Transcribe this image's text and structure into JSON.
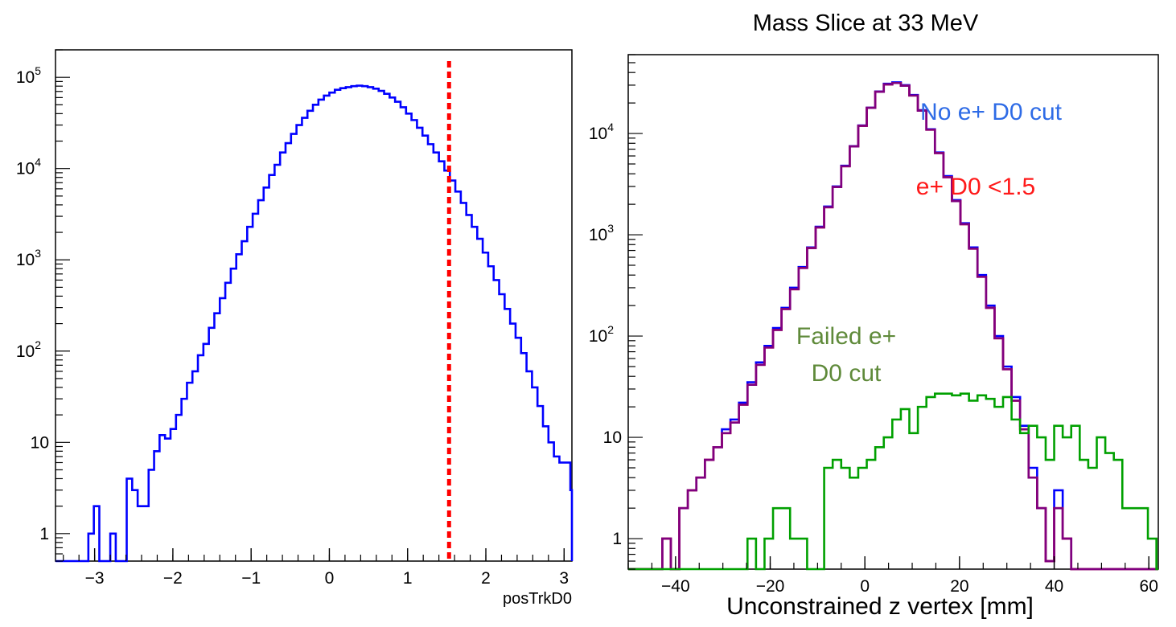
{
  "page": {
    "right_title": "Mass Slice at 33 MeV"
  },
  "colors": {
    "blue": "#0000ff",
    "red_cut": "#ff0000",
    "red_series": "#ff0000",
    "purple": "#7f007f",
    "green": "#00a000",
    "legend_blue": "#2e6be6",
    "legend_red": "#ff1a1a",
    "legend_green": "#5f8a3a"
  },
  "chart_data": [
    {
      "id": "left",
      "type": "histogram",
      "xlabel": "posTrkD0",
      "title": "",
      "x_scale": "linear",
      "y_scale": "log",
      "xlim": [
        -3.5,
        3.1
      ],
      "ylim": [
        0.5,
        200000
      ],
      "xticks": [
        -3,
        -2,
        -1,
        0,
        1,
        2,
        3
      ],
      "xtick_labels": [
        "−3",
        "−2",
        "−1",
        "0",
        "1",
        "2",
        "3"
      ],
      "yticks": [
        {
          "value": 1,
          "base": "1",
          "exp": ""
        },
        {
          "value": 10,
          "base": "10",
          "exp": ""
        },
        {
          "value": 100,
          "base": "10",
          "exp": "2"
        },
        {
          "value": 1000,
          "base": "10",
          "exp": "3"
        },
        {
          "value": 10000,
          "base": "10",
          "exp": "4"
        },
        {
          "value": 100000,
          "base": "10",
          "exp": "5"
        }
      ],
      "grid": false,
      "bin_start": -3.5,
      "bin_width": 0.07,
      "cut_line_x": 1.53,
      "series": [
        {
          "color_key": "blue",
          "values": [
            0,
            0,
            0,
            0,
            0,
            0,
            1,
            2,
            0,
            0,
            1,
            0,
            0,
            4,
            3,
            2,
            2,
            5,
            8,
            12,
            11,
            14,
            20,
            30,
            45,
            60,
            90,
            120,
            180,
            260,
            380,
            560,
            800,
            1150,
            1600,
            2300,
            3200,
            4500,
            6200,
            8500,
            11000,
            15000,
            19000,
            24000,
            30000,
            36000,
            43000,
            50000,
            57000,
            63000,
            68000,
            73000,
            76000,
            78000,
            80000,
            81000,
            80000,
            78000,
            75000,
            71000,
            66000,
            60000,
            54000,
            47000,
            40000,
            34000,
            28000,
            23000,
            18500,
            15000,
            12000,
            9500,
            7400,
            5600,
            4200,
            3100,
            2300,
            1700,
            1200,
            850,
            600,
            420,
            290,
            200,
            140,
            95,
            60,
            40,
            25,
            15,
            10,
            7,
            6,
            6,
            3,
            1,
            0.6,
            2,
            2,
            1,
            0,
            0.6,
            1,
            0,
            1,
            0
          ]
        }
      ]
    },
    {
      "id": "right",
      "type": "histogram",
      "title": "Mass Slice at 33 MeV",
      "xlabel": "Unconstrained z vertex [mm]",
      "x_scale": "linear",
      "y_scale": "log",
      "xlim": [
        -50,
        62
      ],
      "ylim": [
        0.5,
        60000
      ],
      "xticks": [
        -40,
        -20,
        0,
        20,
        40,
        60
      ],
      "xtick_labels": [
        "−40",
        "−20",
        "0",
        "20",
        "40",
        "60"
      ],
      "yticks": [
        {
          "value": 1,
          "base": "1",
          "exp": ""
        },
        {
          "value": 10,
          "base": "10",
          "exp": ""
        },
        {
          "value": 100,
          "base": "10",
          "exp": "2"
        },
        {
          "value": 1000,
          "base": "10",
          "exp": "3"
        },
        {
          "value": 10000,
          "base": "10",
          "exp": "4"
        }
      ],
      "grid": false,
      "bin_start": -50,
      "bin_width": 1.8,
      "legend": [
        {
          "label": "No e+ D0 cut",
          "color_key": "legend_blue"
        },
        {
          "label": "e+ D0 <1.5",
          "color_key": "legend_red"
        },
        {
          "label_line1": "Failed e+",
          "label_line2": "D0 cut",
          "color_key": "legend_green"
        }
      ],
      "series": [
        {
          "name": "No e+ D0 cut",
          "color_key": "blue",
          "values": [
            0,
            0,
            0,
            0,
            1,
            0,
            2,
            3,
            4,
            6,
            8,
            12,
            15,
            22,
            35,
            55,
            80,
            120,
            190,
            300,
            480,
            750,
            1200,
            1900,
            3000,
            4800,
            7500,
            12000,
            18000,
            26000,
            31000,
            32000,
            30000,
            24000,
            17000,
            11000,
            6500,
            3800,
            2200,
            1300,
            750,
            400,
            200,
            100,
            50,
            25,
            13,
            5,
            2,
            0.6,
            3,
            1,
            0.5,
            0.5,
            0,
            0,
            0,
            0,
            0,
            0,
            0,
            0,
            0
          ]
        },
        {
          "name": "e+ D0 <1.5",
          "color_key": "red_series",
          "values": [
            0,
            0,
            0,
            0,
            1,
            0,
            2,
            3,
            4,
            6,
            8,
            11,
            14,
            21,
            33,
            52,
            77,
            115,
            185,
            290,
            470,
            740,
            1180,
            1870,
            2960,
            4750,
            7450,
            11900,
            17900,
            25800,
            30500,
            31500,
            29600,
            23700,
            16800,
            10900,
            6400,
            3700,
            2150,
            1270,
            730,
            385,
            190,
            95,
            47,
            23,
            12,
            4,
            2,
            0.6,
            2,
            1,
            0.5,
            0.5,
            0,
            0,
            0,
            0,
            0,
            0,
            0,
            0,
            0
          ]
        },
        {
          "name": "purple",
          "color_key": "purple",
          "values": [
            0,
            0,
            0,
            0,
            1,
            0,
            2,
            3,
            4,
            6,
            8,
            11,
            14,
            21,
            33,
            52,
            77,
            115,
            185,
            290,
            470,
            740,
            1180,
            1870,
            2960,
            4750,
            7450,
            11900,
            17900,
            25800,
            30500,
            31500,
            29600,
            23700,
            16800,
            10900,
            6400,
            3700,
            2150,
            1270,
            730,
            385,
            190,
            95,
            47,
            23,
            12,
            4,
            2,
            0.6,
            2,
            1,
            0.5,
            0.5,
            0,
            0,
            0,
            0,
            0,
            0,
            0,
            0,
            0
          ]
        },
        {
          "name": "Failed e+ D0 cut",
          "color_key": "green",
          "values": [
            0,
            0,
            0,
            0,
            0,
            0,
            0,
            0,
            0,
            0,
            0,
            0,
            0,
            0,
            1,
            0.5,
            1,
            2,
            2,
            1,
            1,
            0.5,
            0.5,
            5,
            6,
            5,
            4,
            5,
            6,
            8,
            10,
            15,
            19,
            11,
            20,
            25,
            27,
            27,
            26,
            27,
            23,
            26,
            24,
            20,
            25,
            15,
            11,
            13,
            10,
            6,
            13,
            10,
            13,
            6,
            5,
            10,
            7,
            6,
            2,
            2,
            2,
            1,
            0
          ]
        }
      ]
    }
  ]
}
